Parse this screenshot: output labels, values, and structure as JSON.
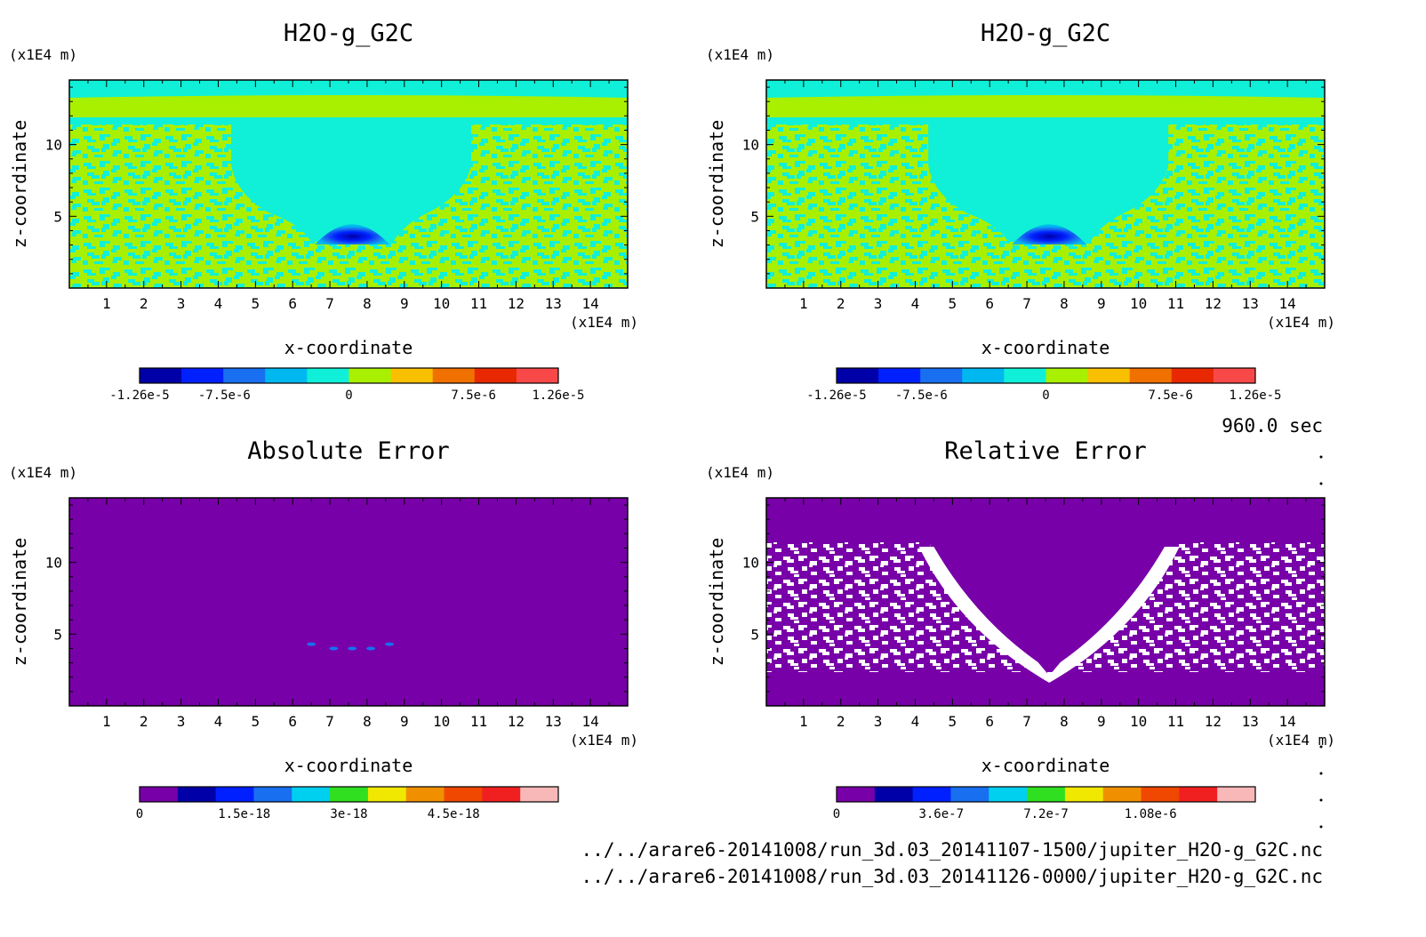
{
  "time_label": "960.0 sec",
  "files": [
    "../../arare6-20141008/run_3d.03_20141107-1500/jupiter_H2O-g_G2C.nc",
    "../../arare6-20141008/run_3d.03_20141126-0000/jupiter_H2O-g_G2C.nc"
  ],
  "chart_data": [
    {
      "type": "heatmap",
      "title": "H2O-g_G2C",
      "xlabel": "x-coordinate",
      "ylabel": "z-coordinate",
      "xunit": "(x1E4 m)",
      "yunit": "(x1E4 m)",
      "xlim": [
        0,
        15
      ],
      "ylim": [
        0,
        14.5
      ],
      "xticks": [
        "1",
        "2",
        "3",
        "4",
        "5",
        "6",
        "7",
        "8",
        "9",
        "10",
        "11",
        "12",
        "13",
        "14"
      ],
      "yticks": [
        "5",
        "10"
      ],
      "colorbar": {
        "colors": [
          "#0000a8",
          "#0020ff",
          "#1870f0",
          "#00b8f0",
          "#10f0d8",
          "#a8f000",
          "#f8c000",
          "#f07000",
          "#e82800",
          "#f84848"
        ],
        "tick_labels": [
          "-1.26e-5",
          "-7.5e-6",
          "0",
          "7.5e-6",
          "1.26e-5"
        ],
        "tick_values": [
          -1.26e-05,
          -7.5e-06,
          0,
          7.5e-06,
          1.26e-05
        ],
        "range": [
          -1.26e-05,
          1.26e-05
        ]
      }
    },
    {
      "type": "heatmap",
      "title": "H2O-g_G2C",
      "xlabel": "x-coordinate",
      "ylabel": "z-coordinate",
      "xunit": "(x1E4 m)",
      "yunit": "(x1E4 m)",
      "xlim": [
        0,
        15
      ],
      "ylim": [
        0,
        14.5
      ],
      "xticks": [
        "1",
        "2",
        "3",
        "4",
        "5",
        "6",
        "7",
        "8",
        "9",
        "10",
        "11",
        "12",
        "13",
        "14"
      ],
      "yticks": [
        "5",
        "10"
      ],
      "colorbar": {
        "colors": [
          "#0000a8",
          "#0020ff",
          "#1870f0",
          "#00b8f0",
          "#10f0d8",
          "#a8f000",
          "#f8c000",
          "#f07000",
          "#e82800",
          "#f84848"
        ],
        "tick_labels": [
          "-1.26e-5",
          "-7.5e-6",
          "0",
          "7.5e-6",
          "1.26e-5"
        ],
        "tick_values": [
          -1.26e-05,
          -7.5e-06,
          0,
          7.5e-06,
          1.26e-05
        ],
        "range": [
          -1.26e-05,
          1.26e-05
        ]
      }
    },
    {
      "type": "heatmap",
      "title": "Absolute Error",
      "xlabel": "x-coordinate",
      "ylabel": "z-coordinate",
      "xunit": "(x1E4 m)",
      "yunit": "(x1E4 m)",
      "xlim": [
        0,
        15
      ],
      "ylim": [
        0,
        14.5
      ],
      "xticks": [
        "1",
        "2",
        "3",
        "4",
        "5",
        "6",
        "7",
        "8",
        "9",
        "10",
        "11",
        "12",
        "13",
        "14"
      ],
      "yticks": [
        "5",
        "10"
      ],
      "colorbar": {
        "colors": [
          "#7800a8",
          "#0000a8",
          "#0020ff",
          "#1870f0",
          "#00d0f0",
          "#30e020",
          "#f0e800",
          "#f09000",
          "#f04800",
          "#f02020",
          "#f8b8b8"
        ],
        "tick_labels": [
          "0",
          "1.5e-18",
          "3e-18",
          "4.5e-18"
        ],
        "tick_values": [
          0,
          1.5e-18,
          3e-18,
          4.5e-18
        ],
        "range": [
          0,
          6e-18
        ]
      }
    },
    {
      "type": "heatmap",
      "title": "Relative Error",
      "xlabel": "x-coordinate",
      "ylabel": "z-coordinate",
      "xunit": "(x1E4 m)",
      "yunit": "(x1E4 m)",
      "xlim": [
        0,
        15
      ],
      "ylim": [
        0,
        14.5
      ],
      "xticks": [
        "1",
        "2",
        "3",
        "4",
        "5",
        "6",
        "7",
        "8",
        "9",
        "10",
        "11",
        "12",
        "13",
        "14"
      ],
      "yticks": [
        "5",
        "10"
      ],
      "colorbar": {
        "colors": [
          "#7800a8",
          "#0000a8",
          "#0020ff",
          "#1870f0",
          "#00d0f0",
          "#30e020",
          "#f0e800",
          "#f09000",
          "#f04800",
          "#f02020",
          "#f8b8b8"
        ],
        "tick_labels": [
          "0",
          "3.6e-7",
          "7.2e-7",
          "1.08e-6"
        ],
        "tick_values": [
          0,
          3.6e-07,
          7.2e-07,
          1.08e-06
        ],
        "range": [
          0,
          1.44e-06
        ]
      }
    }
  ]
}
